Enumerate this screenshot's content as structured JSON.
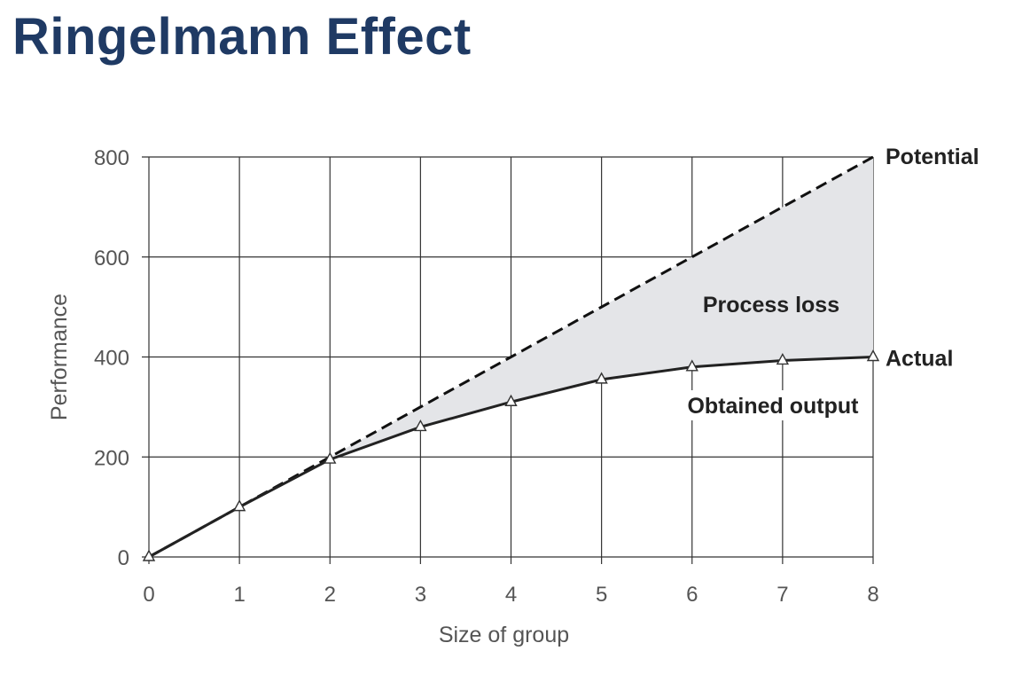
{
  "slide": {
    "title": "Ringelmann Effect"
  },
  "chart_data": {
    "type": "line",
    "title": "",
    "xlabel": "Size of group",
    "ylabel": "Performance",
    "xlim": [
      0,
      8
    ],
    "ylim": [
      0,
      800
    ],
    "x_ticks": [
      0,
      1,
      2,
      3,
      4,
      5,
      6,
      7,
      8
    ],
    "y_ticks": [
      0,
      200,
      400,
      600,
      800
    ],
    "grid": true,
    "legend": "none",
    "x": [
      0,
      1,
      2,
      3,
      4,
      5,
      6,
      7,
      8
    ],
    "series": [
      {
        "name": "Potential",
        "style": "dashed",
        "marker": "none",
        "color": "#111111",
        "values": [
          0,
          100,
          200,
          300,
          400,
          500,
          600,
          700,
          800
        ]
      },
      {
        "name": "Actual",
        "style": "solid",
        "marker": "triangle",
        "color": "#222222",
        "values": [
          0,
          100,
          195,
          260,
          310,
          355,
          380,
          393,
          400
        ]
      }
    ],
    "shaded_region": {
      "between": [
        "Potential",
        "Actual"
      ],
      "color": "#e4e5e8"
    },
    "annotations": [
      {
        "text": "Process loss"
      },
      {
        "text": "Obtained output"
      }
    ]
  }
}
